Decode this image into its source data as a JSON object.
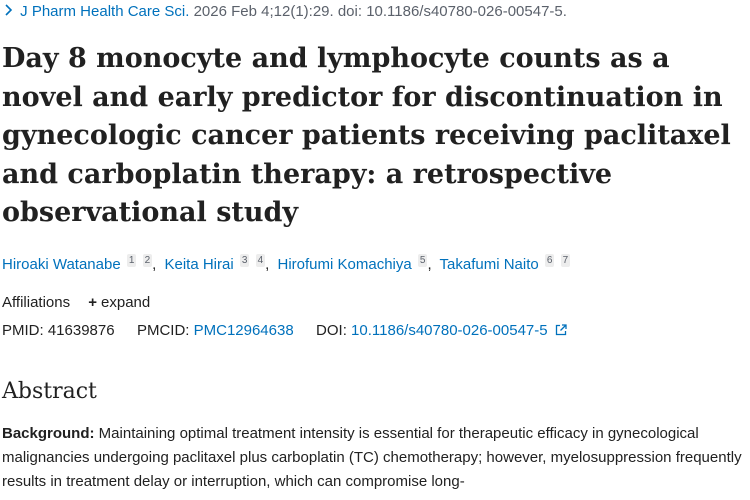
{
  "citation": {
    "journal": "J Pharm Health Care Sci.",
    "details": " 2026 Feb 4;12(1):29. doi: 10.1186/s40780-026-00547-5."
  },
  "title": "Day 8 monocyte and lymphocyte counts as a novel and early predictor for discontinuation in gynecologic cancer patients receiving paclitaxel and carboplatin therapy: a retrospective observational study",
  "authors": [
    {
      "name": "Hiroaki Watanabe",
      "affils": [
        "1",
        "2"
      ]
    },
    {
      "name": "Keita Hirai",
      "affils": [
        "3",
        "4"
      ]
    },
    {
      "name": "Hirofumi Komachiya",
      "affils": [
        "5"
      ]
    },
    {
      "name": "Takafumi Naito",
      "affils": [
        "6",
        "7"
      ]
    }
  ],
  "affiliations": {
    "label": "Affiliations",
    "expand_label": "expand"
  },
  "ids": {
    "pmid_label": "PMID:",
    "pmid": "41639876",
    "pmcid_label": "PMCID:",
    "pmcid": "PMC12964638",
    "doi_label": "DOI:",
    "doi": "10.1186/s40780-026-00547-5"
  },
  "abstract": {
    "heading": "Abstract",
    "background_label": "Background:",
    "background_text": " Maintaining optimal treatment intensity is essential for therapeutic efficacy in gynecological malignancies undergoing paclitaxel plus carboplatin (TC) chemotherapy; however, myelosuppression frequently results in treatment delay or interruption, which can compromise long-"
  },
  "colors": {
    "link": "#0071bc",
    "text": "#212121",
    "muted": "#5b616b"
  }
}
